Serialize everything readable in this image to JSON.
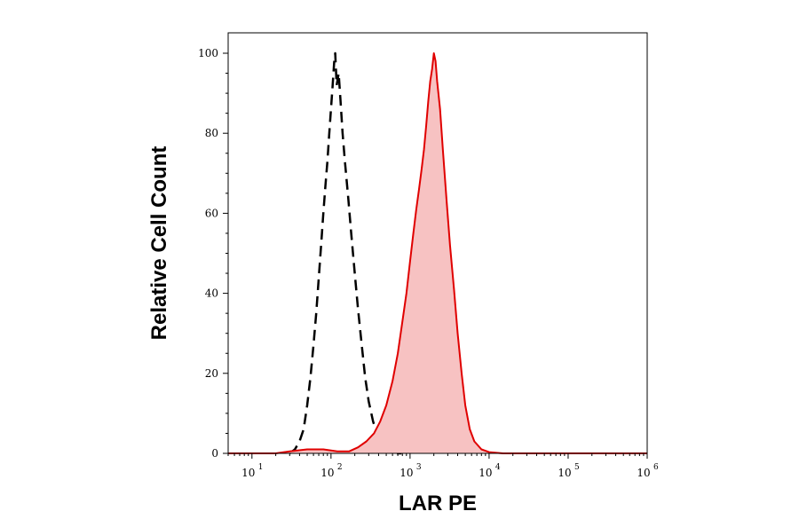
{
  "chart_data": {
    "type": "area",
    "title": "",
    "xlabel": "LAR PE",
    "ylabel": "Relative Cell Count",
    "x_scale": "log",
    "xlim": [
      5,
      1000000
    ],
    "ylim": [
      0,
      100
    ],
    "x_ticks": [
      {
        "base": "10",
        "exp": "1"
      },
      {
        "base": "10",
        "exp": "2"
      },
      {
        "base": "10",
        "exp": "3"
      },
      {
        "base": "10",
        "exp": "4"
      },
      {
        "base": "10",
        "exp": "5"
      },
      {
        "base": "10",
        "exp": "6"
      }
    ],
    "y_ticks": [
      "0",
      "20",
      "40",
      "60",
      "80",
      "100"
    ],
    "grid": false,
    "legend": "none",
    "series": [
      {
        "style": "dashed",
        "color": "#000000",
        "fill": "none",
        "points": [
          [
            30,
            0
          ],
          [
            35,
            1
          ],
          [
            40,
            3
          ],
          [
            45,
            6
          ],
          [
            50,
            12
          ],
          [
            55,
            19
          ],
          [
            60,
            27
          ],
          [
            65,
            35
          ],
          [
            70,
            44
          ],
          [
            75,
            52
          ],
          [
            80,
            60
          ],
          [
            85,
            67
          ],
          [
            90,
            73
          ],
          [
            95,
            80
          ],
          [
            100,
            86
          ],
          [
            105,
            92
          ],
          [
            110,
            98
          ],
          [
            113,
            100
          ],
          [
            118,
            92
          ],
          [
            125,
            95
          ],
          [
            132,
            88
          ],
          [
            140,
            80
          ],
          [
            150,
            73
          ],
          [
            165,
            64
          ],
          [
            180,
            55
          ],
          [
            200,
            45
          ],
          [
            220,
            36
          ],
          [
            245,
            27
          ],
          [
            270,
            19
          ],
          [
            300,
            13
          ],
          [
            340,
            8
          ],
          [
            380,
            5
          ],
          [
            430,
            3
          ],
          [
            500,
            1
          ],
          [
            650,
            0
          ],
          [
            780,
            0
          ]
        ]
      },
      {
        "style": "solid",
        "color": "#e00000",
        "fill": "#f7c2c2",
        "points": [
          [
            5,
            0
          ],
          [
            20,
            0
          ],
          [
            30,
            0.5
          ],
          [
            50,
            1
          ],
          [
            80,
            1
          ],
          [
            120,
            0.5
          ],
          [
            170,
            0.5
          ],
          [
            220,
            1.5
          ],
          [
            280,
            3
          ],
          [
            350,
            5
          ],
          [
            420,
            8
          ],
          [
            500,
            12
          ],
          [
            600,
            18
          ],
          [
            700,
            25
          ],
          [
            800,
            33
          ],
          [
            900,
            40
          ],
          [
            1000,
            48
          ],
          [
            1100,
            55
          ],
          [
            1200,
            61
          ],
          [
            1300,
            66
          ],
          [
            1400,
            71
          ],
          [
            1500,
            76
          ],
          [
            1600,
            82
          ],
          [
            1700,
            88
          ],
          [
            1800,
            93
          ],
          [
            1900,
            96
          ],
          [
            2000,
            100
          ],
          [
            2100,
            98
          ],
          [
            2200,
            93
          ],
          [
            2400,
            86
          ],
          [
            2600,
            76
          ],
          [
            2900,
            63
          ],
          [
            3200,
            52
          ],
          [
            3600,
            41
          ],
          [
            4000,
            30
          ],
          [
            4500,
            20
          ],
          [
            5000,
            12
          ],
          [
            5700,
            6
          ],
          [
            6500,
            3
          ],
          [
            8000,
            1
          ],
          [
            10000,
            0.3
          ],
          [
            15000,
            0
          ],
          [
            1000000,
            0
          ]
        ]
      }
    ]
  }
}
